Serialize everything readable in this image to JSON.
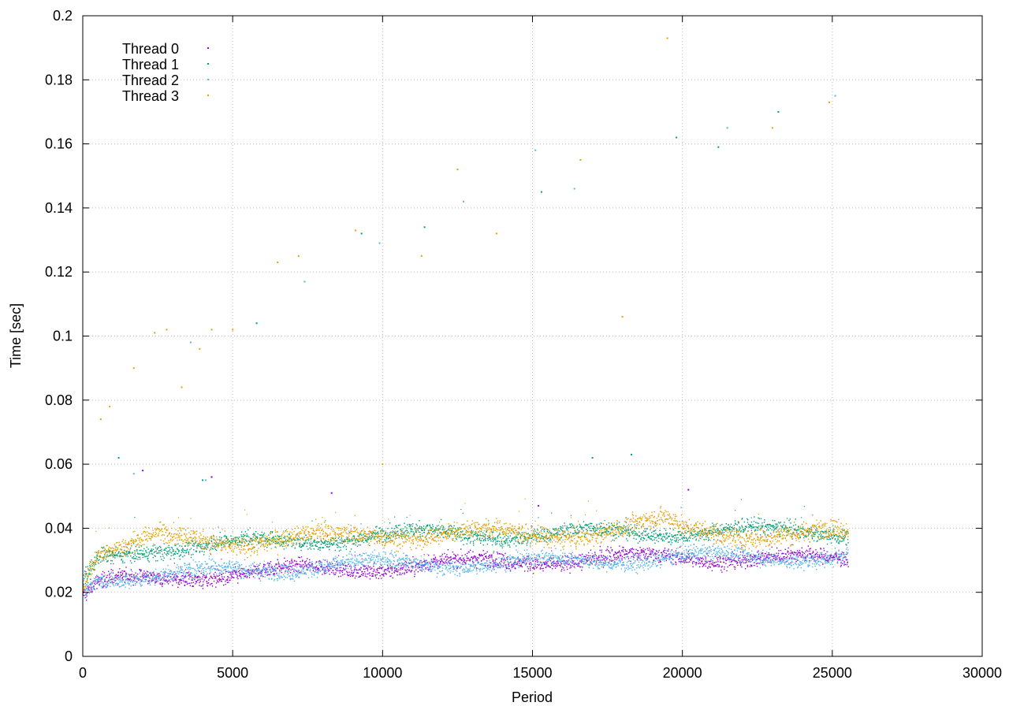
{
  "chart_data": {
    "type": "scatter",
    "title": "",
    "xlabel": "Period",
    "ylabel": "Time [sec]",
    "xlim": [
      0,
      30000
    ],
    "ylim": [
      0,
      0.2
    ],
    "x_ticks": [
      0,
      5000,
      10000,
      15000,
      20000,
      25000,
      30000
    ],
    "y_ticks": [
      0,
      0.02,
      0.04,
      0.06,
      0.08,
      0.1,
      0.12,
      0.14,
      0.16,
      0.18,
      0.2
    ],
    "x_tick_labels": [
      "0",
      "5000",
      "10000",
      "15000",
      "20000",
      "25000",
      "30000"
    ],
    "y_tick_labels": [
      "0",
      "0.02",
      "0.04",
      "0.06",
      "0.08",
      "0.1",
      "0.12",
      "0.14",
      "0.16",
      "0.18",
      "0.2"
    ],
    "grid": true,
    "legend_position": "top-left",
    "period_range": [
      0,
      25500
    ],
    "series": [
      {
        "name": "Thread 0",
        "color": "#9400d3",
        "typical_band": [
          [
            0,
            0.019
          ],
          [
            500,
            0.023
          ],
          [
            2500,
            0.024
          ],
          [
            5000,
            0.026
          ],
          [
            10000,
            0.028
          ],
          [
            15000,
            0.03
          ],
          [
            20000,
            0.031
          ],
          [
            25500,
            0.03
          ]
        ],
        "spread": 0.0025,
        "outliers": [
          [
            2000,
            0.058
          ],
          [
            4300,
            0.056
          ],
          [
            8300,
            0.051
          ],
          [
            15200,
            0.047
          ],
          [
            20200,
            0.052
          ]
        ]
      },
      {
        "name": "Thread 1",
        "color": "#009e73",
        "typical_band": [
          [
            0,
            0.022
          ],
          [
            500,
            0.03
          ],
          [
            2500,
            0.034
          ],
          [
            5000,
            0.035
          ],
          [
            7000,
            0.036
          ],
          [
            10000,
            0.038
          ],
          [
            15000,
            0.038
          ],
          [
            20000,
            0.039
          ],
          [
            25500,
            0.039
          ]
        ],
        "spread": 0.0025,
        "outliers": [
          [
            1200,
            0.062
          ],
          [
            4000,
            0.055
          ],
          [
            5800,
            0.104
          ],
          [
            9300,
            0.132
          ],
          [
            11400,
            0.134
          ],
          [
            15300,
            0.145
          ],
          [
            17000,
            0.062
          ],
          [
            18300,
            0.063
          ],
          [
            19800,
            0.162
          ],
          [
            21200,
            0.159
          ],
          [
            23200,
            0.17
          ]
        ]
      },
      {
        "name": "Thread 2",
        "color": "#56b4e9",
        "typical_band": [
          [
            0,
            0.02
          ],
          [
            500,
            0.025
          ],
          [
            2500,
            0.025
          ],
          [
            5000,
            0.027
          ],
          [
            10000,
            0.029
          ],
          [
            15000,
            0.029
          ],
          [
            20000,
            0.031
          ],
          [
            25500,
            0.031
          ]
        ],
        "spread": 0.0025,
        "outliers": [
          [
            1700,
            0.057
          ],
          [
            3600,
            0.098
          ],
          [
            4100,
            0.055
          ],
          [
            7400,
            0.117
          ],
          [
            9900,
            0.129
          ],
          [
            12700,
            0.142
          ],
          [
            15100,
            0.158
          ],
          [
            16400,
            0.146
          ],
          [
            21500,
            0.165
          ],
          [
            25100,
            0.175
          ]
        ]
      },
      {
        "name": "Thread 3",
        "color": "#e69f00",
        "typical_band": [
          [
            0,
            0.024
          ],
          [
            500,
            0.033
          ],
          [
            1500,
            0.034
          ],
          [
            2500,
            0.037
          ],
          [
            5000,
            0.036
          ],
          [
            7000,
            0.037
          ],
          [
            9000,
            0.037
          ],
          [
            10000,
            0.038
          ],
          [
            12500,
            0.039
          ],
          [
            15000,
            0.037
          ],
          [
            19500,
            0.042
          ],
          [
            20000,
            0.039
          ],
          [
            25500,
            0.038
          ]
        ],
        "spread": 0.003,
        "outliers": [
          [
            600,
            0.074
          ],
          [
            900,
            0.078
          ],
          [
            1700,
            0.09
          ],
          [
            2400,
            0.101
          ],
          [
            2800,
            0.102
          ],
          [
            3300,
            0.084
          ],
          [
            3900,
            0.096
          ],
          [
            4300,
            0.102
          ],
          [
            5000,
            0.102
          ],
          [
            6500,
            0.123
          ],
          [
            7200,
            0.125
          ],
          [
            9100,
            0.133
          ],
          [
            10000,
            0.06
          ],
          [
            11300,
            0.125
          ],
          [
            12500,
            0.152
          ],
          [
            13800,
            0.132
          ],
          [
            16600,
            0.155
          ],
          [
            18000,
            0.106
          ],
          [
            19500,
            0.193
          ],
          [
            23000,
            0.165
          ],
          [
            24900,
            0.173
          ]
        ]
      }
    ]
  }
}
